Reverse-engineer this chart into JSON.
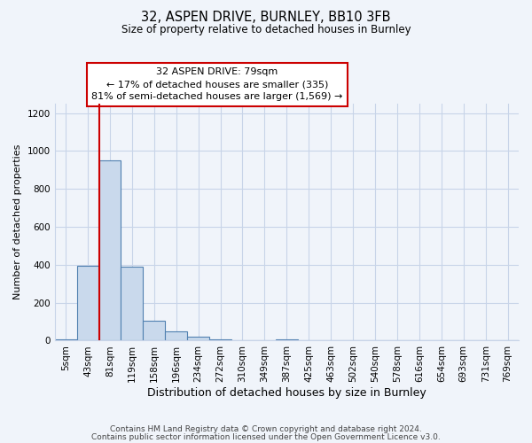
{
  "title": "32, ASPEN DRIVE, BURNLEY, BB10 3FB",
  "subtitle": "Size of property relative to detached houses in Burnley",
  "xlabel": "Distribution of detached houses by size in Burnley",
  "ylabel": "Number of detached properties",
  "bar_labels": [
    "5sqm",
    "43sqm",
    "81sqm",
    "119sqm",
    "158sqm",
    "196sqm",
    "234sqm",
    "272sqm",
    "310sqm",
    "349sqm",
    "387sqm",
    "425sqm",
    "463sqm",
    "502sqm",
    "540sqm",
    "578sqm",
    "616sqm",
    "654sqm",
    "693sqm",
    "731sqm",
    "769sqm"
  ],
  "bar_values": [
    5,
    395,
    950,
    390,
    105,
    50,
    22,
    8,
    0,
    0,
    5,
    0,
    0,
    0,
    0,
    0,
    0,
    0,
    0,
    0,
    0
  ],
  "bar_color": "#c9d9ec",
  "bar_edge_color": "#5080b0",
  "vline_color": "#cc0000",
  "annotation_title": "32 ASPEN DRIVE: 79sqm",
  "annotation_line1": "← 17% of detached houses are smaller (335)",
  "annotation_line2": "81% of semi-detached houses are larger (1,569) →",
  "annotation_box_edge_color": "#cc0000",
  "ylim": [
    0,
    1250
  ],
  "yticks": [
    0,
    200,
    400,
    600,
    800,
    1000,
    1200
  ],
  "footer_line1": "Contains HM Land Registry data © Crown copyright and database right 2024.",
  "footer_line2": "Contains public sector information licensed under the Open Government Licence v3.0.",
  "bg_color": "#f0f4fa",
  "grid_color": "#c8d4e8"
}
